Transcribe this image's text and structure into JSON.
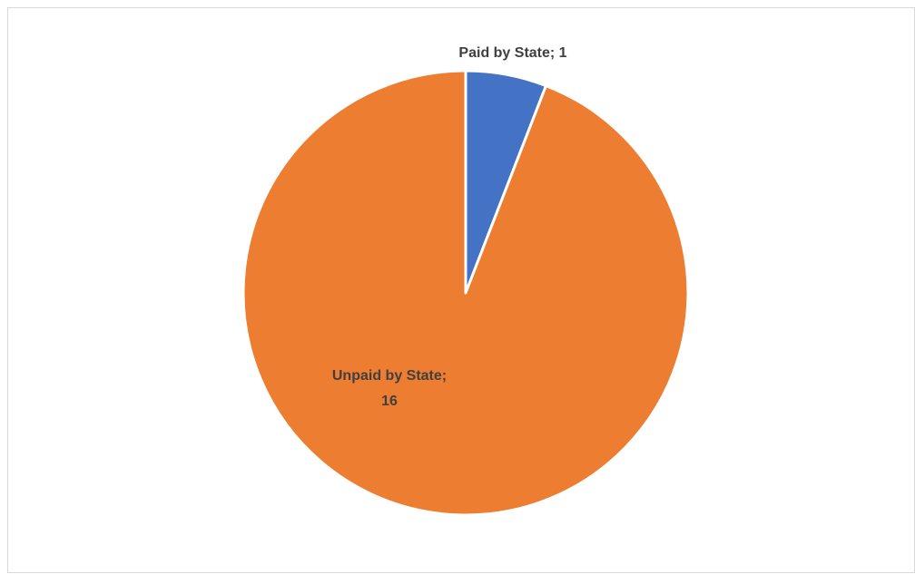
{
  "chart_data": {
    "type": "pie",
    "title": "",
    "categories": [
      "Paid by State",
      "Unpaid by State"
    ],
    "values": [
      1,
      16
    ],
    "colors": [
      "#4472c4",
      "#ed7d31"
    ],
    "slice_border_color": "#ffffff",
    "labels": [
      {
        "lines": [
          "Paid by State; 1"
        ]
      },
      {
        "lines": [
          "Unpaid by State;",
          "16"
        ]
      }
    ],
    "legend": "none",
    "start_angle": "12 o'clock",
    "direction": "clockwise"
  }
}
